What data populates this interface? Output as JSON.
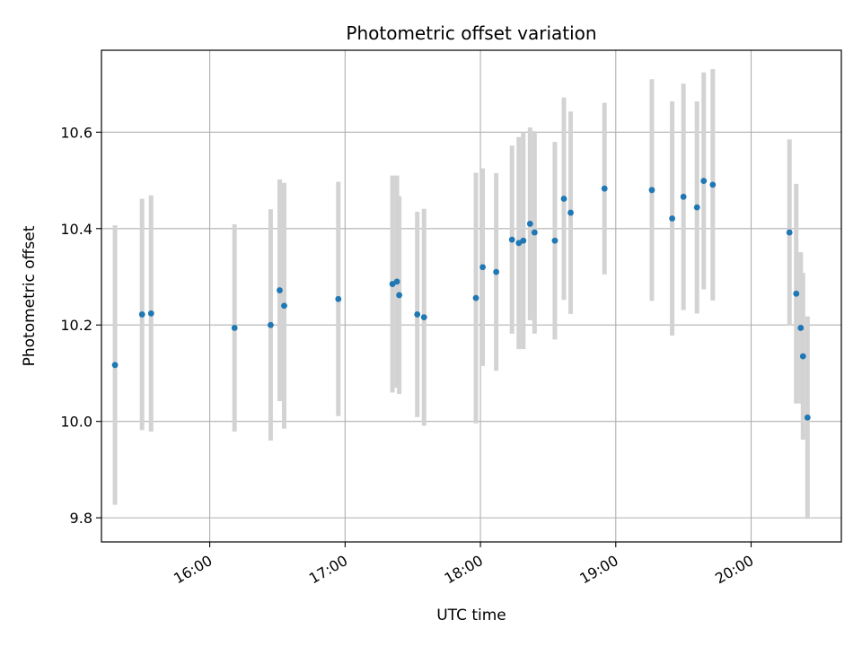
{
  "chart_data": {
    "type": "scatter",
    "title": "Photometric offset variation",
    "xlabel": "UTC time",
    "ylabel": "Photometric offset",
    "xlim": [
      "15:12",
      "20:40"
    ],
    "ylim": [
      9.75,
      10.77
    ],
    "x_ticks": [
      "16:00",
      "17:00",
      "18:00",
      "19:00",
      "20:00"
    ],
    "y_ticks": [
      "9.8",
      "10.0",
      "10.2",
      "10.4",
      "10.6"
    ],
    "grid": true,
    "colors": {
      "point": "#1f77b4",
      "errorbar": "#d3d3d3",
      "grid": "#b0b0b0"
    },
    "points": [
      {
        "x": "15:18",
        "y": 10.117,
        "err": 0.29
      },
      {
        "x": "15:30",
        "y": 10.222,
        "err": 0.24
      },
      {
        "x": "15:34",
        "y": 10.224,
        "err": 0.245
      },
      {
        "x": "16:11",
        "y": 10.194,
        "err": 0.215
      },
      {
        "x": "16:27",
        "y": 10.2,
        "err": 0.24
      },
      {
        "x": "16:31",
        "y": 10.272,
        "err": 0.23
      },
      {
        "x": "16:33",
        "y": 10.24,
        "err": 0.255
      },
      {
        "x": "16:57",
        "y": 10.254,
        "err": 0.243
      },
      {
        "x": "17:21",
        "y": 10.285,
        "err": 0.225
      },
      {
        "x": "17:23",
        "y": 10.29,
        "err": 0.22
      },
      {
        "x": "17:24",
        "y": 10.262,
        "err": 0.205
      },
      {
        "x": "17:32",
        "y": 10.222,
        "err": 0.213
      },
      {
        "x": "17:35",
        "y": 10.216,
        "err": 0.225
      },
      {
        "x": "17:58",
        "y": 10.256,
        "err": 0.26
      },
      {
        "x": "18:01",
        "y": 10.32,
        "err": 0.205
      },
      {
        "x": "18:07",
        "y": 10.31,
        "err": 0.205
      },
      {
        "x": "18:14",
        "y": 10.377,
        "err": 0.195
      },
      {
        "x": "18:17",
        "y": 10.37,
        "err": 0.22
      },
      {
        "x": "18:19",
        "y": 10.375,
        "err": 0.225
      },
      {
        "x": "18:22",
        "y": 10.41,
        "err": 0.2
      },
      {
        "x": "18:24",
        "y": 10.392,
        "err": 0.21
      },
      {
        "x": "18:33",
        "y": 10.375,
        "err": 0.205
      },
      {
        "x": "18:37",
        "y": 10.462,
        "err": 0.21
      },
      {
        "x": "18:40",
        "y": 10.433,
        "err": 0.21
      },
      {
        "x": "18:55",
        "y": 10.483,
        "err": 0.178
      },
      {
        "x": "19:16",
        "y": 10.48,
        "err": 0.23
      },
      {
        "x": "19:25",
        "y": 10.421,
        "err": 0.243
      },
      {
        "x": "19:30",
        "y": 10.466,
        "err": 0.235
      },
      {
        "x": "19:36",
        "y": 10.444,
        "err": 0.22
      },
      {
        "x": "19:39",
        "y": 10.499,
        "err": 0.225
      },
      {
        "x": "19:43",
        "y": 10.491,
        "err": 0.24
      },
      {
        "x": "20:17",
        "y": 10.392,
        "err": 0.193
      },
      {
        "x": "20:20",
        "y": 10.265,
        "err": 0.228
      },
      {
        "x": "20:22",
        "y": 10.194,
        "err": 0.157
      },
      {
        "x": "20:23",
        "y": 10.135,
        "err": 0.173
      },
      {
        "x": "20:25",
        "y": 10.008,
        "err": 0.21
      }
    ]
  }
}
